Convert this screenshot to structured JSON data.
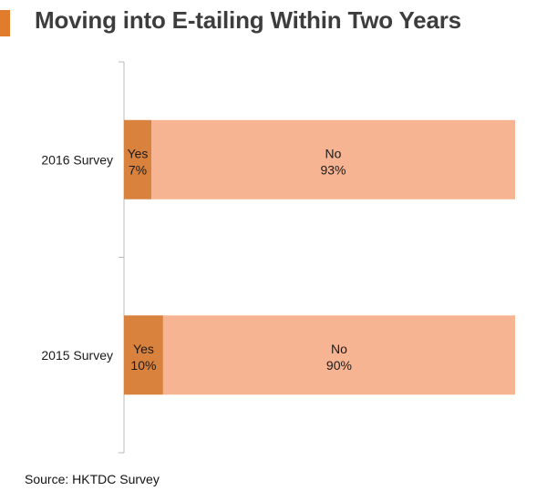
{
  "title": "Moving into E-tailing Within Two Years",
  "source": "Source: HKTDC Survey",
  "colors": {
    "accent": "#e07c2c",
    "yes": "#d9823e",
    "no": "#f7b493",
    "axis": "#b9b9b9",
    "text": "#1a1a1a"
  },
  "chart_data": {
    "type": "bar",
    "orientation": "horizontal",
    "stacked": true,
    "percent_stacked": true,
    "categories": [
      "2016 Survey",
      "2015 Survey"
    ],
    "series": [
      {
        "name": "Yes",
        "values": [
          7,
          10
        ]
      },
      {
        "name": "No",
        "values": [
          93,
          90
        ]
      }
    ],
    "xlim": [
      0,
      100
    ],
    "grid": false,
    "legend": "none"
  }
}
